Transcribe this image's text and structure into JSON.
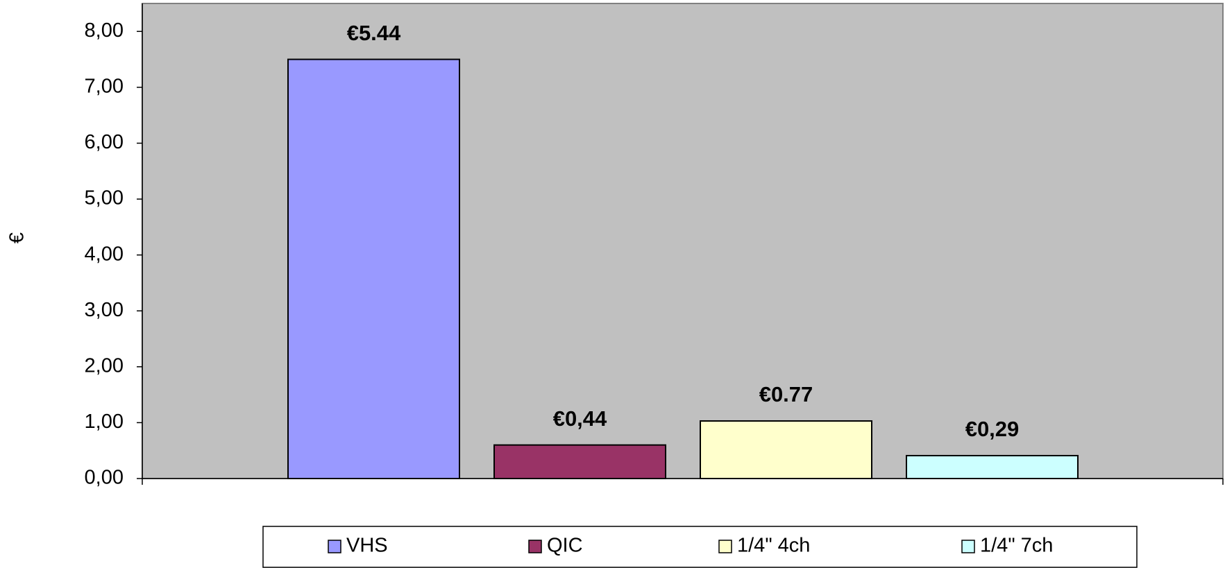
{
  "chart_data": {
    "type": "bar",
    "ylabel": "€",
    "categories": [
      null
    ],
    "series": [
      {
        "name": "VHS",
        "color": "#9999ff",
        "values": [
          7.5
        ]
      },
      {
        "name": "QIC",
        "color": "#993366",
        "values": [
          0.6
        ]
      },
      {
        "name": "1/4\"  4ch",
        "color": "#ffffcc",
        "values": [
          1.03
        ]
      },
      {
        "name": "1/4\"  7ch",
        "color": "#ccffff",
        "values": [
          0.41
        ]
      }
    ],
    "annotations": [
      "€5.44",
      "€0,44",
      "€0.77",
      "€0,29"
    ],
    "ylim": [
      0,
      8.5
    ],
    "yticks": [
      {
        "value": 0,
        "label": "0,00"
      },
      {
        "value": 1,
        "label": "1,00"
      },
      {
        "value": 2,
        "label": "2,00"
      },
      {
        "value": 3,
        "label": "3,00"
      },
      {
        "value": 4,
        "label": "4,00"
      },
      {
        "value": 5,
        "label": "5,00"
      },
      {
        "value": 6,
        "label": "6,00"
      },
      {
        "value": 7,
        "label": "7,00"
      },
      {
        "value": 8,
        "label": "8,00"
      }
    ],
    "plot_background": "#c0c0c0",
    "legend": "bottom"
  }
}
